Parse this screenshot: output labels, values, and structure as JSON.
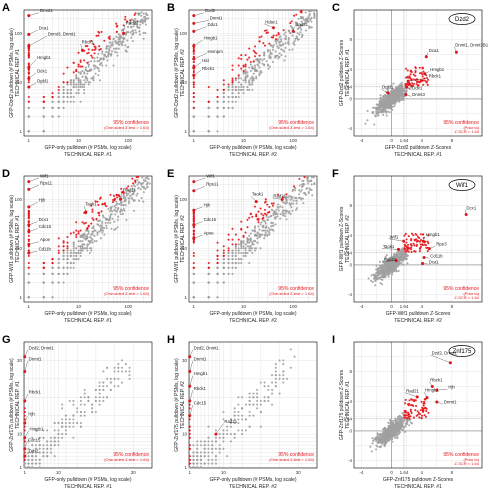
{
  "colors": {
    "background": "#ffffff",
    "nonsig": "#a0a0a0",
    "sig": "#e8141b",
    "grid": "#d8d8d8",
    "frame": "#000000",
    "text": "#222222"
  },
  "chart_data": [
    {
      "panel": "A",
      "type": "scatter",
      "scale": "log",
      "xlabel": "GFP-only pulldown (# PSMs, log scale)",
      "ylabel": "GFP-Dzd2 pulldown (# PSMs, log scale)",
      "tech_label": "TECHNICAL REP. #1",
      "xticks": [
        "1",
        "10",
        "100"
      ],
      "yticks": [
        "1",
        "10",
        "100"
      ],
      "xlim": [
        0.8,
        300
      ],
      "ylim": [
        0.8,
        300
      ],
      "conf_label": "95% confidence",
      "conf_sub": "(One-sided Z-test > 1.64)",
      "labels": [
        {
          "text": "Dmnt1",
          "x": 1,
          "y": 230,
          "tx": 1.6,
          "ty": 270
        },
        {
          "text": "Dca1",
          "x": 1,
          "y": 95,
          "tx": 1.5,
          "ty": 120
        },
        {
          "text": "Dnmt3, Dnmt1",
          "x": 1,
          "y": 55,
          "tx": 2.3,
          "ty": 90
        },
        {
          "text": "Hmgb1",
          "x": 1,
          "y": 20,
          "tx": 1.4,
          "ty": 30
        },
        {
          "text": "Ddx1",
          "x": 1,
          "y": 12,
          "tx": 1.4,
          "ty": 16
        },
        {
          "text": "Dgld1",
          "x": 1,
          "y": 8,
          "tx": 1.4,
          "ty": 10
        },
        {
          "text": "Rbck1",
          "x": 12,
          "y": 45,
          "tx": 11,
          "ty": 62
        },
        {
          "text": "Rad21",
          "x": 80,
          "y": 100,
          "tx": 85,
          "ty": 150
        }
      ]
    },
    {
      "panel": "B",
      "type": "scatter",
      "scale": "log",
      "xlabel": "GFP-only pulldown (# PSMs, log scale)",
      "ylabel": "GFP-Dzd2 pulldown (# PSMs, log scale)",
      "tech_label": "TECHNICAL REP. #2",
      "xticks": [
        "1",
        "10",
        "100"
      ],
      "yticks": [
        "1",
        "10",
        "100"
      ],
      "xlim": [
        0.8,
        300
      ],
      "ylim": [
        0.8,
        300
      ],
      "conf_label": "95% confidence",
      "conf_sub": "(One-sided Z-test > 1.64)",
      "labels": [
        {
          "text": "Dzd2",
          "x": 1,
          "y": 230,
          "tx": 1.6,
          "ty": 270
        },
        {
          "text": "Dnmt1",
          "x": 1,
          "y": 160,
          "tx": 2.0,
          "ty": 190
        },
        {
          "text": "Ddx1",
          "x": 1,
          "y": 110,
          "tx": 1.8,
          "ty": 140
        },
        {
          "text": "Hmgb1",
          "x": 1,
          "y": 55,
          "tx": 1.5,
          "ty": 75
        },
        {
          "text": "Hnrnpm",
          "x": 1,
          "y": 30,
          "tx": 1.8,
          "ty": 40
        },
        {
          "text": "Hat",
          "x": 1,
          "y": 20,
          "tx": 1.4,
          "ty": 26
        },
        {
          "text": "Rbck1",
          "x": 1,
          "y": 14,
          "tx": 1.4,
          "ty": 18
        },
        {
          "text": "Hdac1",
          "x": 40,
          "y": 130,
          "tx": 26,
          "ty": 160
        },
        {
          "text": "Rad21",
          "x": 100,
          "y": 110,
          "tx": 105,
          "ty": 140
        }
      ]
    },
    {
      "panel": "C",
      "type": "scatter",
      "scale": "z",
      "xlabel": "GFP-Dzd2 pulldown Z-Scores",
      "ylabel": "GFP-Dzd2 pulldown Z-Scores",
      "tech_label": "TECHNICAL REP. #1",
      "xticks": [
        "-4",
        "0",
        "1.64",
        "4",
        "8"
      ],
      "yticks": [
        "-4",
        "0",
        "1.64",
        "4",
        "8"
      ],
      "xlim": [
        -5,
        12
      ],
      "ylim": [
        -5,
        12
      ],
      "bait": "Dzd2",
      "conf_label": "95% confidence",
      "conf_sub": "(Prior to)",
      "conf_sub2": "Z-SCR > 1.64",
      "labels": [
        {
          "text": "Dnmt1, Dnmt3B1",
          "x": 8.6,
          "y": 6.3,
          "tx": 8.3,
          "ty": 7.1
        },
        {
          "text": "Dca1",
          "x": 4.6,
          "y": 5.7,
          "tx": 4.8,
          "ty": 6.3
        },
        {
          "text": "Hmgb1",
          "x": 4.4,
          "y": 3.4,
          "tx": 5.0,
          "ty": 3.8
        },
        {
          "text": "Rbck1",
          "x": 2.2,
          "y": 2.4,
          "tx": 4.8,
          "ty": 2.9
        },
        {
          "text": "Dgld1",
          "x": -0.5,
          "y": 0.8,
          "tx": -1.4,
          "ty": 1.4
        },
        {
          "text": "Ddx1",
          "x": 2.0,
          "y": 1.6,
          "tx": 2.6,
          "ty": 1.3
        },
        {
          "text": "Dnmt3",
          "x": 1.9,
          "y": 0.6,
          "tx": 2.6,
          "ty": 0.4
        }
      ]
    },
    {
      "panel": "D",
      "type": "scatter",
      "scale": "log",
      "xlabel": "GFP-only pulldown (# PSMs, log scale)",
      "ylabel": "GFP-Wif1 pulldown (# PSMs, log scale)",
      "tech_label": "TECHNICAL REP. #1",
      "xticks": [
        "1",
        "10",
        "100"
      ],
      "yticks": [
        "1",
        "10",
        "100"
      ],
      "xlim": [
        0.8,
        300
      ],
      "ylim": [
        0.8,
        300
      ],
      "conf_label": "95% confidence",
      "conf_sub": "(One-sided Z-test > 1.64)",
      "labels": [
        {
          "text": "Wif1",
          "x": 1,
          "y": 230,
          "tx": 1.6,
          "ty": 280
        },
        {
          "text": "Rps11",
          "x": 1,
          "y": 160,
          "tx": 1.6,
          "ty": 200
        },
        {
          "text": "Hjh",
          "x": 1,
          "y": 70,
          "tx": 1.5,
          "ty": 90
        },
        {
          "text": "Dcx1",
          "x": 1,
          "y": 30,
          "tx": 1.5,
          "ty": 36
        },
        {
          "text": "Cdc15",
          "x": 1,
          "y": 22,
          "tx": 1.5,
          "ty": 26
        },
        {
          "text": "Apoe",
          "x": 1,
          "y": 12,
          "tx": 1.6,
          "ty": 14
        },
        {
          "text": "Cd11b",
          "x": 1,
          "y": 8,
          "tx": 1.5,
          "ty": 9
        },
        {
          "text": "Taok1",
          "x": 14,
          "y": 55,
          "tx": 13,
          "ty": 75
        },
        {
          "text": "Rad21",
          "x": 70,
          "y": 100,
          "tx": 75,
          "ty": 145
        }
      ]
    },
    {
      "panel": "E",
      "type": "scatter",
      "scale": "log",
      "xlabel": "GFP-only pulldown (# PSMs, log scale)",
      "ylabel": "GFP-Wif1 pulldown (# PSMs, log scale)",
      "tech_label": "TECHNICAL REP. #2",
      "xticks": [
        "1",
        "10",
        "100"
      ],
      "yticks": [
        "1",
        "10",
        "100"
      ],
      "xlim": [
        0.8,
        300
      ],
      "ylim": [
        0.8,
        300
      ],
      "conf_label": "95% confidence",
      "conf_sub": "(One-sided Z-test > 1.64)",
      "labels": [
        {
          "text": "Wif1",
          "x": 1,
          "y": 230,
          "tx": 1.7,
          "ty": 280
        },
        {
          "text": "Rps11",
          "x": 1,
          "y": 150,
          "tx": 1.7,
          "ty": 190
        },
        {
          "text": "Taok1",
          "x": 18,
          "y": 90,
          "tx": 14,
          "ty": 120
        },
        {
          "text": "Hjh",
          "x": 1,
          "y": 60,
          "tx": 1.5,
          "ty": 72
        },
        {
          "text": "Cdc15",
          "x": 1,
          "y": 30,
          "tx": 1.5,
          "ty": 36
        },
        {
          "text": "Apoe",
          "x": 1,
          "y": 16,
          "tx": 1.5,
          "ty": 19
        },
        {
          "text": "Rad21",
          "x": 60,
          "y": 100,
          "tx": 38,
          "ty": 110
        }
      ]
    },
    {
      "panel": "F",
      "type": "scatter",
      "scale": "z",
      "xlabel": "GFP-Wif1 pulldown Z-Scores",
      "ylabel": "GFP-Wif1 pulldown Z-Scores",
      "tech_label": "TECHNICAL REP. #2",
      "xticks": [
        "-4",
        "0",
        "1.64",
        "4",
        "8"
      ],
      "yticks": [
        "-4",
        "0",
        "1.64",
        "4",
        "8"
      ],
      "xlim": [
        -5,
        12
      ],
      "ylim": [
        -5,
        12
      ],
      "bait": "Wif1",
      "conf_label": "95% confidence",
      "conf_sub": "(Prior to)",
      "conf_sub2": "Z-SCR > 1.64",
      "labels": [
        {
          "text": "Dcx1",
          "x": 9.9,
          "y": 6.8,
          "tx": 9.8,
          "ty": 7.5
        },
        {
          "text": "Hmgb1",
          "x": 4.2,
          "y": 3.2,
          "tx": 4.4,
          "ty": 3.9
        },
        {
          "text": "Rpe3",
          "x": 5.0,
          "y": 2.2,
          "tx": 5.8,
          "ty": 2.6
        },
        {
          "text": "Wif1",
          "x": 1.6,
          "y": 3.2,
          "tx": -0.4,
          "ty": 3.6
        },
        {
          "text": "Taok1",
          "x": 0.9,
          "y": 2.1,
          "tx": -1.3,
          "ty": 2.3
        },
        {
          "text": "Cd11b",
          "x": 4.3,
          "y": 1.0,
          "tx": 5.0,
          "ty": 1.0
        },
        {
          "text": "Rad21",
          "x": 0.6,
          "y": 0.6,
          "tx": -1.2,
          "ty": 0.5
        },
        {
          "text": "Dca1",
          "x": 4.1,
          "y": 0.2,
          "tx": 4.8,
          "ty": 0.2
        }
      ]
    },
    {
      "panel": "G",
      "type": "scatter",
      "scale": "lin",
      "xlabel": "GFP-only pulldown (# PSMs, log scale)",
      "ylabel": "GFP-Znf175 pulldown (# PSMs, log scale)",
      "tech_label": "TECHNICAL REP. #1",
      "xticks": [
        "1",
        "10",
        "30"
      ],
      "yticks": [
        "1",
        "10",
        "30"
      ],
      "xlim": [
        0.8,
        35
      ],
      "ylim": [
        0.8,
        35
      ],
      "conf_label": "95% confidence",
      "conf_sub": "(One-sided Z-test > 1.64)",
      "labels": [
        {
          "text": "Dzd2, Dnmt1",
          "x": 1,
          "y": 31,
          "tx": 1.8,
          "ty": 33
        },
        {
          "text": "Dnmt1",
          "x": 1,
          "y": 27,
          "tx": 1.8,
          "ty": 30
        },
        {
          "text": "Rbck1",
          "x": 1,
          "y": 19,
          "tx": 1.8,
          "ty": 21
        },
        {
          "text": "Hjh",
          "x": 1,
          "y": 13,
          "tx": 1.7,
          "ty": 15
        },
        {
          "text": "Hmgb1",
          "x": 1,
          "y": 9,
          "tx": 2.0,
          "ty": 11
        },
        {
          "text": "Cdc15",
          "x": 1,
          "y": 6,
          "tx": 1.6,
          "ty": 8
        },
        {
          "text": "Ddx1",
          "x": 1,
          "y": 4,
          "tx": 1.8,
          "ty": 5
        }
      ]
    },
    {
      "panel": "H",
      "type": "scatter",
      "scale": "lin",
      "xlabel": "GFP-only pulldown (# PSMs, log scale)",
      "ylabel": "GFP-Znf175 pulldown (# PSMs, log scale)",
      "tech_label": "TECHNICAL REP. #2",
      "xticks": [
        "1",
        "10",
        "30"
      ],
      "yticks": [
        "1",
        "10",
        "30"
      ],
      "xlim": [
        0.8,
        35
      ],
      "ylim": [
        0.8,
        35
      ],
      "conf_label": "95% confidence",
      "conf_sub": "(One-sided Z-test > 1.64)",
      "labels": [
        {
          "text": "Dzd2, Dnmt1",
          "x": 1,
          "y": 31,
          "tx": 1.8,
          "ty": 33
        },
        {
          "text": "Dnmt1",
          "x": 1,
          "y": 27,
          "tx": 1.8,
          "ty": 30
        },
        {
          "text": "Hmgb1",
          "x": 1,
          "y": 23,
          "tx": 1.8,
          "ty": 26
        },
        {
          "text": "Rbck1",
          "x": 1,
          "y": 19,
          "tx": 1.8,
          "ty": 22
        },
        {
          "text": "Cdc15",
          "x": 1,
          "y": 15,
          "tx": 1.8,
          "ty": 18
        },
        {
          "text": "Rad21",
          "x": 8,
          "y": 10,
          "tx": 10,
          "ty": 13
        }
      ]
    },
    {
      "panel": "I",
      "type": "scatter",
      "scale": "z",
      "xlabel": "GFP-Znf175 pulldown Z-Scores",
      "ylabel": "GFP-Znf175 pulldown Z-Scores",
      "tech_label": "TECHNICAL REP. #1",
      "xticks": [
        "-4",
        "0",
        "1.64",
        "4",
        "8"
      ],
      "yticks": [
        "-4",
        "0",
        "1.64",
        "4",
        "8"
      ],
      "xlim": [
        -5,
        12
      ],
      "ylim": [
        -5,
        12
      ],
      "bait": "Znf175",
      "conf_label": "95% confidence",
      "conf_sub": "(Prior to)",
      "conf_sub2": "Z-SCR > 1.64",
      "labels": [
        {
          "text": "Dzd2, Dnmt1",
          "x": 7.8,
          "y": 9.2,
          "tx": 5.2,
          "ty": 10.3
        },
        {
          "text": "Rbck1",
          "x": 5.4,
          "y": 6.0,
          "tx": 5.0,
          "ty": 6.7
        },
        {
          "text": "Hjh",
          "x": 6.0,
          "y": 5.5,
          "tx": 7.4,
          "ty": 5.7
        },
        {
          "text": "Rad21",
          "x": 3.4,
          "y": 4.6,
          "tx": 1.8,
          "ty": 5.2
        },
        {
          "text": "Hmgb1",
          "x": 4.7,
          "y": 4.5,
          "tx": 4.3,
          "ty": 5.3
        },
        {
          "text": "Dnmt1",
          "x": 6.0,
          "y": 3.9,
          "tx": 6.8,
          "ty": 3.7
        }
      ]
    }
  ]
}
